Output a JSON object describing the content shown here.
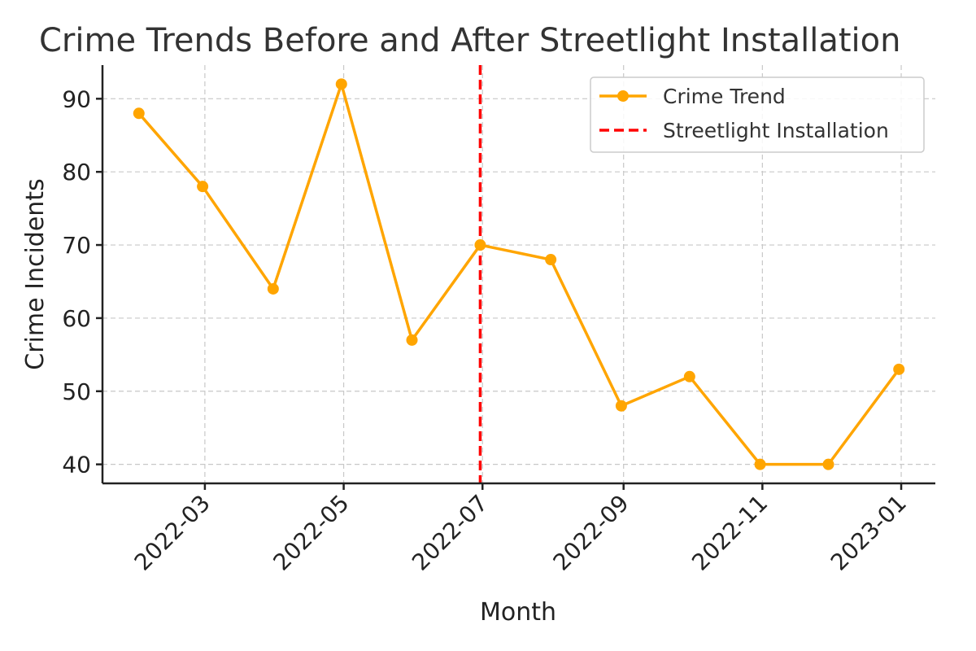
{
  "chart_data": {
    "type": "line",
    "title": "Crime Trends Before and After Streetlight Installation",
    "xlabel": "Month",
    "ylabel": "Crime Incidents",
    "x": [
      "2022-01-31",
      "2022-02-28",
      "2022-03-31",
      "2022-04-30",
      "2022-05-31",
      "2022-06-30",
      "2022-07-31",
      "2022-08-31",
      "2022-09-30",
      "2022-10-31",
      "2022-11-30",
      "2022-12-31"
    ],
    "series": [
      {
        "name": "Crime Trend",
        "color": "#FFA500",
        "values": [
          88,
          78,
          64,
          92,
          57,
          70,
          68,
          48,
          52,
          40,
          40,
          53
        ]
      }
    ],
    "vline": {
      "name": "Streetlight Installation",
      "x": "2022-06-30",
      "color": "#FF0000"
    },
    "x_ticks": [
      {
        "date": "2022-03-01",
        "label": "2022-03"
      },
      {
        "date": "2022-05-01",
        "label": "2022-05"
      },
      {
        "date": "2022-07-01",
        "label": "2022-07"
      },
      {
        "date": "2022-09-01",
        "label": "2022-09"
      },
      {
        "date": "2022-11-01",
        "label": "2022-11"
      },
      {
        "date": "2023-01-01",
        "label": "2023-01"
      }
    ],
    "y_ticks": [
      40,
      50,
      60,
      70,
      80,
      90
    ],
    "ylim": [
      37.4,
      94.6
    ],
    "xlim": [
      "2022-01-15",
      "2023-01-16"
    ],
    "grid": true,
    "legend_position": "top-right",
    "legend": [
      {
        "label": "Crime Trend",
        "kind": "line-marker",
        "color": "#FFA500"
      },
      {
        "label": "Streetlight Installation",
        "kind": "dashed",
        "color": "#FF0000"
      }
    ]
  }
}
